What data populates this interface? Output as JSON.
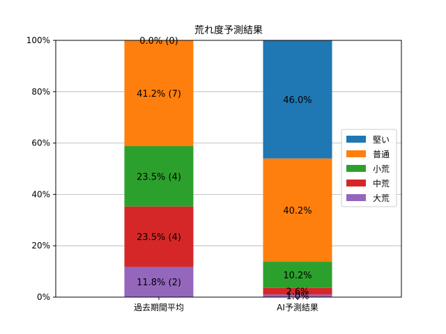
{
  "chart_data": {
    "type": "bar",
    "stacked": true,
    "title": "荒れ度予測結果",
    "xlabel": "",
    "ylabel": "",
    "ylim": [
      0,
      100
    ],
    "y_ticks": [
      "0%",
      "20%",
      "40%",
      "60%",
      "80%",
      "100%"
    ],
    "grid": "horizontal",
    "legend_position": "center-right",
    "categories": [
      "過去期間平均",
      "AI予測結果"
    ],
    "series": [
      {
        "name": "大荒",
        "color": "#9467bd",
        "values": [
          11.8,
          1.0
        ],
        "labels": [
          "11.8% (2)",
          "1.0%"
        ]
      },
      {
        "name": "中荒",
        "color": "#d62728",
        "values": [
          23.5,
          2.6
        ],
        "labels": [
          "23.5% (4)",
          "2.6%"
        ]
      },
      {
        "name": "小荒",
        "color": "#2ca02c",
        "values": [
          23.5,
          10.2
        ],
        "labels": [
          "23.5% (4)",
          "10.2%"
        ]
      },
      {
        "name": "普通",
        "color": "#ff7f0e",
        "values": [
          41.2,
          40.2
        ],
        "labels": [
          "41.2% (7)",
          "40.2%"
        ]
      },
      {
        "name": "堅い",
        "color": "#1f77b4",
        "values": [
          0.0,
          46.0
        ],
        "labels": [
          "0.0% (0)",
          "46.0%"
        ]
      }
    ],
    "legend_order": [
      "堅い",
      "普通",
      "小荒",
      "中荒",
      "大荒"
    ]
  }
}
